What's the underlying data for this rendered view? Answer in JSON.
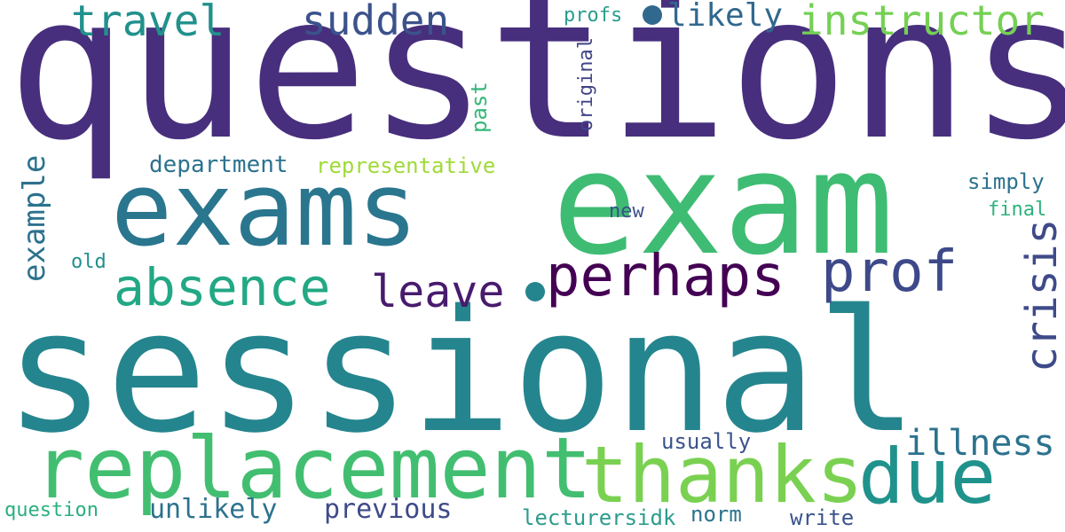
{
  "words": [
    {
      "text": "questions",
      "color": "#472f7d"
    },
    {
      "text": "sessional",
      "color": "#25858e"
    },
    {
      "text": "exam",
      "color": "#3fbc73"
    },
    {
      "text": "exams",
      "color": "#2a768e"
    },
    {
      "text": "replacement",
      "color": "#42be71"
    },
    {
      "text": "thanks",
      "color": "#7ad151"
    },
    {
      "text": "due",
      "color": "#20928c"
    },
    {
      "text": "perhaps",
      "color": "#440154"
    },
    {
      "text": "prof",
      "color": "#3e4989"
    },
    {
      "text": "absence",
      "color": "#22a884"
    },
    {
      "text": "leave",
      "color": "#481b6d"
    },
    {
      "text": "travel",
      "color": "#21918c"
    },
    {
      "text": "sudden",
      "color": "#3b528b"
    },
    {
      "text": "instructor",
      "color": "#75d054"
    },
    {
      "text": "likely",
      "color": "#31688e"
    },
    {
      "text": "profs",
      "color": "#2a9d8f"
    },
    {
      "text": "crisis",
      "color": "#3e4a89"
    },
    {
      "text": "illness",
      "color": "#2c728e"
    },
    {
      "text": "example",
      "color": "#2c728e"
    },
    {
      "text": "department",
      "color": "#2c728e"
    },
    {
      "text": "representative",
      "color": "#a0da39"
    },
    {
      "text": "past",
      "color": "#35b779"
    },
    {
      "text": "original",
      "color": "#414487"
    },
    {
      "text": "simply",
      "color": "#2c728e"
    },
    {
      "text": "final",
      "color": "#2db27d"
    },
    {
      "text": "new",
      "color": "#3b528b"
    },
    {
      "text": "old",
      "color": "#21908d"
    },
    {
      "text": "usually",
      "color": "#3b528b"
    },
    {
      "text": "unlikely",
      "color": "#2c728e"
    },
    {
      "text": "previous",
      "color": "#3e4a89"
    },
    {
      "text": "question",
      "color": "#2ab07f"
    },
    {
      "text": "lecturersidk",
      "color": "#2c9c8d"
    },
    {
      "text": "norm",
      "color": "#2c728e"
    },
    {
      "text": "write",
      "color": "#3a548c"
    }
  ],
  "dots": [
    {
      "color": "#31688e"
    },
    {
      "color": "#25858e"
    }
  ]
}
